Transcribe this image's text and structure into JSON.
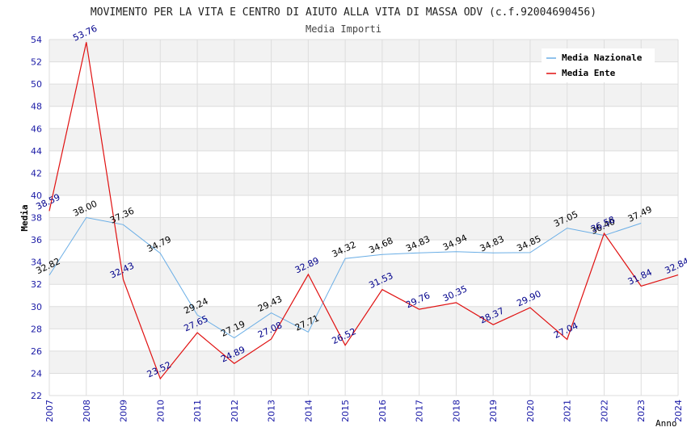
{
  "chart_data": {
    "type": "line",
    "title": "MOVIMENTO PER LA VITA E CENTRO DI AIUTO ALLA VITA DI MASSA ODV (c.f.92004690456)",
    "subtitle": "Media Importi",
    "xlabel": "Anno",
    "ylabel": "Media",
    "ylim": [
      22,
      54
    ],
    "ytick_step": 2,
    "grid": true,
    "legend_position": "top-right",
    "x": [
      "2007",
      "2008",
      "2009",
      "2010",
      "2011",
      "2012",
      "2013",
      "2014",
      "2015",
      "2016",
      "2017",
      "2018",
      "2019",
      "2020",
      "2021",
      "2022",
      "2023",
      "2024"
    ],
    "series": [
      {
        "name": "Media Nazionale",
        "color": "#6aaee6",
        "label_color": "#000000",
        "values": [
          32.82,
          38.0,
          37.36,
          34.79,
          29.24,
          27.19,
          29.43,
          27.71,
          34.32,
          34.68,
          34.83,
          34.94,
          34.83,
          34.85,
          37.05,
          36.4,
          37.49,
          null
        ],
        "labels": [
          "32.82",
          "38.00",
          "37.36",
          "34.79",
          "29.24",
          "27.19",
          "29.43",
          "27.71",
          "34.32",
          "34.68",
          "34.83",
          "34.94",
          "34.83",
          "34.85",
          "37.05",
          "36.40",
          "37.49",
          ""
        ]
      },
      {
        "name": "Media Ente",
        "color": "#e01010",
        "label_color": "#00008b",
        "values": [
          38.59,
          53.76,
          32.43,
          23.52,
          27.65,
          24.89,
          27.08,
          32.89,
          26.52,
          31.53,
          29.76,
          30.35,
          28.37,
          29.9,
          27.04,
          36.58,
          31.84,
          32.84
        ],
        "labels": [
          "38.59",
          "53.76",
          "32.43",
          "23.52",
          "27.65",
          "24.89",
          "27.08",
          "32.89",
          "26.52",
          "31.53",
          "29.76",
          "30.35",
          "28.37",
          "29.90",
          "27.04",
          "36.58",
          "31.84",
          "32.84"
        ]
      }
    ]
  }
}
